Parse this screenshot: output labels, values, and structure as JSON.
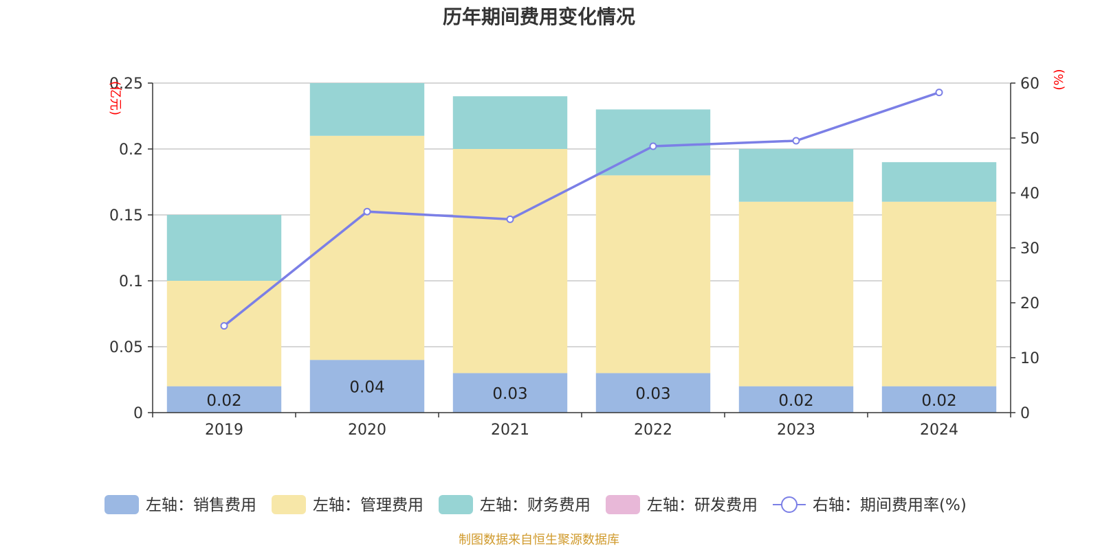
{
  "chart_data": {
    "type": "bar",
    "title": "历年期间费用变化情况",
    "categories": [
      "2019",
      "2020",
      "2021",
      "2022",
      "2023",
      "2024"
    ],
    "left_axis": {
      "unit_label": "(亿元)",
      "ylim": [
        0,
        0.25
      ],
      "ticks": [
        "0",
        "0.05",
        "0.1",
        "0.15",
        "0.2",
        "0.25"
      ]
    },
    "right_axis": {
      "unit_label": "(%)",
      "ylim": [
        0,
        60
      ],
      "ticks": [
        "0",
        "10",
        "20",
        "30",
        "40",
        "50",
        "60"
      ]
    },
    "series": [
      {
        "name": "左轴：销售费用",
        "kind": "bar",
        "color": "#9bb8e3",
        "values": [
          0.02,
          0.04,
          0.03,
          0.03,
          0.02,
          0.02
        ],
        "labels": [
          "0.02",
          "0.04",
          "0.03",
          "0.03",
          "0.02",
          "0.02"
        ]
      },
      {
        "name": "左轴：管理费用",
        "kind": "bar",
        "color": "#f7e7a8",
        "values": [
          0.08,
          0.17,
          0.17,
          0.15,
          0.14,
          0.14
        ]
      },
      {
        "name": "左轴：财务费用",
        "kind": "bar",
        "color": "#97d4d4",
        "values": [
          0.05,
          0.04,
          0.04,
          0.05,
          0.04,
          0.03
        ]
      },
      {
        "name": "左轴：研发费用",
        "kind": "bar",
        "color": "#e8b8d8",
        "values": [
          0,
          0,
          0,
          0,
          0,
          0
        ]
      },
      {
        "name": "右轴：期间费用率(%)",
        "kind": "line",
        "axis": "right",
        "color": "#7b7fe6",
        "values": [
          15.8,
          36.6,
          35.2,
          48.5,
          49.5,
          58.3
        ]
      }
    ],
    "grid": true,
    "legend": "bottom"
  },
  "source_note": "制图数据来自恒生聚源数据库"
}
